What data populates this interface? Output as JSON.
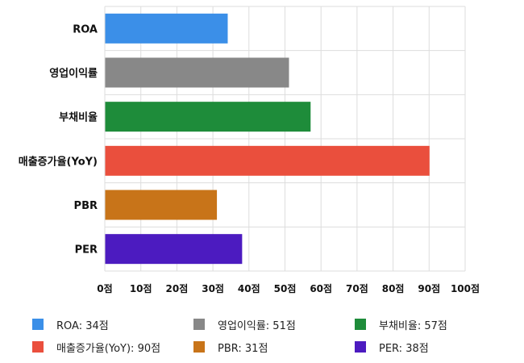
{
  "chart_data": {
    "type": "bar",
    "orientation": "horizontal",
    "categories": [
      "ROA",
      "영업이익률",
      "부채비율",
      "매출증가율(YoY)",
      "PBR",
      "PER"
    ],
    "values": [
      34,
      51,
      57,
      90,
      31,
      38
    ],
    "colors": [
      "#3b8fe8",
      "#888888",
      "#1e8c3a",
      "#ea4f3d",
      "#c87419",
      "#4c1bc0"
    ],
    "xlim": [
      0,
      100
    ],
    "xticks": [
      0,
      10,
      20,
      30,
      40,
      50,
      60,
      70,
      80,
      90,
      100
    ],
    "tick_suffix": "점",
    "tick_labels": [
      "0점",
      "10점",
      "20점",
      "30점",
      "40점",
      "50점",
      "60점",
      "70점",
      "80점",
      "90점",
      "100점"
    ],
    "grid": true,
    "legend_position": "bottom",
    "legend": [
      "ROA: 34점",
      "영업이익률: 51점",
      "부채비율: 57점",
      "매출증가율(YoY): 90점",
      "PBR: 31점",
      "PER: 38점"
    ]
  }
}
